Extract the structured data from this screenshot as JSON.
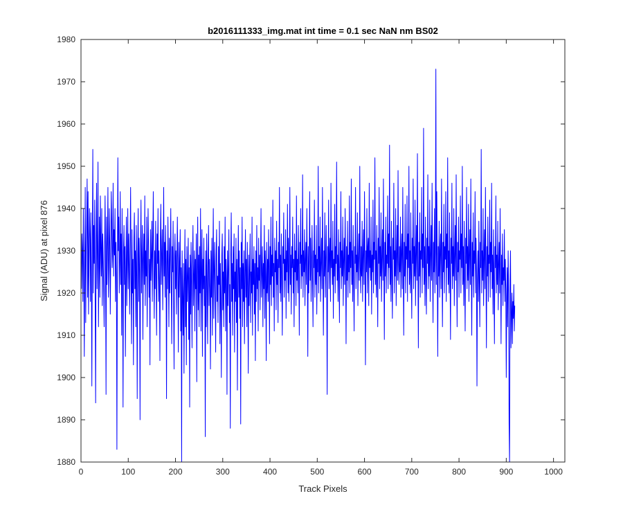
{
  "chart_data": {
    "type": "line",
    "title": "b2016111333_img.mat int time = 0.1 sec  NaN nm BS02",
    "xlabel": "Track Pixels",
    "ylabel": "Signal (ADU) at pixel 876",
    "xlim": [
      0,
      1024
    ],
    "ylim": [
      1880,
      1980
    ],
    "xticks": [
      0,
      100,
      200,
      300,
      400,
      500,
      600,
      700,
      800,
      900,
      1000
    ],
    "yticks": [
      1880,
      1890,
      1900,
      1910,
      1920,
      1930,
      1940,
      1950,
      1960,
      1970,
      1980
    ],
    "grid": false,
    "legend": "none",
    "series_color": "#0000ff",
    "series": [
      {
        "x_start": 1,
        "x_step": 1,
        "values": [
          1921,
          1934,
          1930,
          1918,
          1940,
          1925,
          1905,
          1927,
          1945,
          1913,
          1930,
          1936,
          1947,
          1919,
          1944,
          1915,
          1929,
          1940,
          1933,
          1918,
          1939,
          1924,
          1898,
          1931,
          1954,
          1920,
          1936,
          1927,
          1942,
          1918,
          1894,
          1933,
          1946,
          1921,
          1929,
          1951,
          1912,
          1925,
          1938,
          1919,
          1943,
          1930,
          1924,
          1940,
          1917,
          1934,
          1928,
          1921,
          1912,
          1930,
          1943,
          1926,
          1896,
          1938,
          1922,
          1933,
          1945,
          1919,
          1926,
          1940,
          1931,
          1915,
          1928,
          1944,
          1937,
          1926,
          1930,
          1946,
          1924,
          1935,
          1929,
          1940,
          1918,
          1932,
          1924,
          1883,
          1926,
          1952,
          1930,
          1938,
          1920,
          1927,
          1944,
          1922,
          1934,
          1910,
          1940,
          1925,
          1893,
          1930,
          1936,
          1922,
          1931,
          1905,
          1924,
          1938,
          1917,
          1929,
          1940,
          1921,
          1934,
          1926,
          1915,
          1931,
          1945,
          1923,
          1908,
          1935,
          1920,
          1928,
          1903,
          1933,
          1939,
          1921,
          1930,
          1912,
          1936,
          1924,
          1895,
          1929,
          1940,
          1918,
          1933,
          1925,
          1890,
          1931,
          1942,
          1920,
          1929,
          1936,
          1909,
          1928,
          1934,
          1922,
          1943,
          1917,
          1930,
          1924,
          1938,
          1912,
          1926,
          1940,
          1931,
          1919,
          1928,
          1903,
          1935,
          1923,
          1929,
          1937,
          1918,
          1932,
          1944,
          1926,
          1914,
          1930,
          1921,
          1937,
          1925,
          1910,
          1934,
          1927,
          1940,
          1918,
          1930,
          1923,
          1904,
          1933,
          1941,
          1922,
          1929,
          1935,
          1916,
          1928,
          1945,
          1924,
          1932,
          1919,
          1936,
          1927,
          1895,
          1930,
          1921,
          1938,
          1926,
          1912,
          1933,
          1920,
          1929,
          1940,
          1923,
          1908,
          1931,
          1925,
          1937,
          1918,
          1902,
          1929,
          1934,
          1921,
          1930,
          1915,
          1927,
          1938,
          1924,
          1906,
          1932,
          1919,
          1928,
          1935,
          1911,
          1926,
          1880,
          1930,
          1920,
          1910,
          1927,
          1901,
          1923,
          1935,
          1912,
          1928,
          1903,
          1931,
          1918,
          1924,
          1933,
          1909,
          1926,
          1893,
          1929,
          1915,
          1932,
          1922,
          1907,
          1928,
          1936,
          1917,
          1924,
          1930,
          1911,
          1928,
          1921,
          1934,
          1899,
          1925,
          1938,
          1916,
          1929,
          1912,
          1931,
          1920,
          1940,
          1911,
          1926,
          1935,
          1905,
          1928,
          1921,
          1933,
          1917,
          1924,
          1886,
          1930,
          1912,
          1934,
          1923,
          1908,
          1927,
          1936,
          1917,
          1928,
          1921,
          1902,
          1930,
          1919,
          1933,
          1910,
          1926,
          1940,
          1914,
          1925,
          1932,
          1920,
          1906,
          1929,
          1935,
          1918,
          1924,
          1913,
          1931,
          1922,
          1937,
          1908,
          1927,
          1919,
          1900,
          1929,
          1934,
          1916,
          1925,
          1912,
          1931,
          1920,
          1938,
          1911,
          1928,
          1923,
          1896,
          1930,
          1917,
          1926,
          1935,
          1913,
          1922,
          1888,
          1929,
          1939,
          1918,
          1927,
          1910,
          1931,
          1921,
          1934,
          1906,
          1925,
          1918,
          1933,
          1913,
          1928,
          1897,
          1924,
          1936,
          1919,
          1930,
          1914,
          1926,
          1889,
          1932,
          1921,
          1938,
          1912,
          1927,
          1918,
          1930,
          1908,
          1924,
          1935,
          1919,
          1928,
          1912,
          1932,
          1922,
          1901,
          1929,
          1917,
          1926,
          1934,
          1913,
          1925,
          1920,
          1938,
          1910,
          1928,
          1922,
          1931,
          1915,
          1927,
          1904,
          1930,
          1918,
          1936,
          1921,
          1926,
          1911,
          1933,
          1923,
          1929,
          1916,
          1928,
          1940,
          1919,
          1925,
          1931,
          1912,
          1927,
          1921,
          1936,
          1914,
          1930,
          1924,
          1904,
          1932,
          1920,
          1928,
          1918,
          1935,
          1926,
          1908,
          1931,
          1922,
          1938,
          1917,
          1929,
          1924,
          1942,
          1919,
          1927,
          1911,
          1933,
          1925,
          1930,
          1916,
          1937,
          1922,
          1928,
          1913,
          1932,
          1926,
          1945,
          1920,
          1929,
          1918,
          1934,
          1924,
          1910,
          1931,
          1927,
          1939,
          1919,
          1928,
          1923,
          1935,
          1914,
          1930,
          1925,
          1941,
          1920,
          1933,
          1918,
          1927,
          1945,
          1922,
          1929,
          1915,
          1931,
          1926,
          1938,
          1920,
          1928,
          1912,
          1934,
          1925,
          1930,
          1917,
          1943,
          1923,
          1928,
          1920,
          1936,
          1926,
          1910,
          1932,
          1927,
          1940,
          1921,
          1929,
          1924,
          1948,
          1919,
          1930,
          1925,
          1935,
          1917,
          1928,
          1932,
          1922,
          1940,
          1926,
          1905,
          1931,
          1920,
          1929,
          1944,
          1923,
          1933,
          1918,
          1927,
          1936,
          1924,
          1912,
          1930,
          1926,
          1942,
          1919,
          1929,
          1922,
          1936,
          1915,
          1928,
          1925,
          1950,
          1920,
          1931,
          1924,
          1938,
          1918,
          1927,
          1933,
          1921,
          1945,
          1926,
          1910,
          1930,
          1924,
          1939,
          1919,
          1928,
          1936,
          1922,
          1896,
          1931,
          1925,
          1942,
          1921,
          1929,
          1933,
          1918,
          1946,
          1926,
          1930,
          1922,
          1937,
          1914,
          1928,
          1924,
          1941,
          1920,
          1931,
          1927,
          1951,
          1923,
          1929,
          1918,
          1935,
          1925,
          1913,
          1932,
          1926,
          1944,
          1921,
          1930,
          1924,
          1938,
          1917,
          1928,
          1933,
          1922,
          1940,
          1926,
          1908,
          1931,
          1923,
          1937,
          1919,
          1929,
          1925,
          1943,
          1920,
          1932,
          1926,
          1947,
          1922,
          1930,
          1918,
          1936,
          1924,
          1911,
          1931,
          1927,
          1945,
          1921,
          1929,
          1925,
          1939,
          1917,
          1928,
          1934,
          1923,
          1950,
          1926,
          1920,
          1931,
          1924,
          1937,
          1918,
          1929,
          1935,
          1922,
          1944,
          1927,
          1903,
          1930,
          1925,
          1940,
          1920,
          1931,
          1933,
          1917,
          1946,
          1926,
          1930,
          1923,
          1938,
          1915,
          1929,
          1925,
          1942,
          1920,
          1932,
          1928,
          1952,
          1922,
          1930,
          1919,
          1936,
          1926,
          1912,
          1933,
          1927,
          1945,
          1921,
          1931,
          1924,
          1939,
          1918,
          1928,
          1935,
          1923,
          1947,
          1926,
          1909,
          1932,
          1924,
          1938,
          1920,
          1929,
          1927,
          1943,
          1921,
          1934,
          1926,
          1955,
          1922,
          1931,
          1918,
          1937,
          1925,
          1914,
          1933,
          1928,
          1946,
          1920,
          1930,
          1924,
          1940,
          1917,
          1929,
          1936,
          1923,
          1949,
          1927,
          1922,
          1931,
          1925,
          1938,
          1919,
          1930,
          1934,
          1921,
          1945,
          1926,
          1910,
          1932,
          1924,
          1941,
          1920,
          1931,
          1928,
          1943,
          1918,
          1934,
          1926,
          1950,
          1922,
          1930,
          1920,
          1939,
          1925,
          1914,
          1933,
          1927,
          1947,
          1921,
          1931,
          1924,
          1942,
          1917,
          1929,
          1936,
          1923,
          1953,
          1926,
          1907,
          1932,
          1924,
          1939,
          1919,
          1930,
          1928,
          1945,
          1920,
          1934,
          1926,
          1959,
          1922,
          1931,
          1917,
          1938,
          1925,
          1915,
          1933,
          1927,
          1948,
          1921,
          1931,
          1924,
          1942,
          1918,
          1929,
          1936,
          1923,
          1946,
          1927,
          1913,
          1932,
          1925,
          1940,
          1920,
          1930,
          1973,
          1922,
          1944,
          1926,
          1905,
          1931,
          1924,
          1937,
          1919,
          1930,
          1934,
          1921,
          1947,
          1927,
          1912,
          1932,
          1925,
          1941,
          1920,
          1931,
          1928,
          1944,
          1918,
          1934,
          1926,
          1952,
          1922,
          1930,
          1920,
          1939,
          1925,
          1909,
          1933,
          1927,
          1946,
          1921,
          1931,
          1924,
          1940,
          1917,
          1929,
          1936,
          1923,
          1948,
          1926,
          1912,
          1932,
          1925,
          1938,
          1919,
          1930,
          1928,
          1943,
          1920,
          1934,
          1926,
          1950,
          1922,
          1931,
          1917,
          1937,
          1924,
          1911,
          1933,
          1927,
          1945,
          1921,
          1931,
          1923,
          1941,
          1918,
          1929,
          1935,
          1922,
          1947,
          1926,
          1910,
          1932,
          1924,
          1939,
          1919,
          1930,
          1927,
          1944,
          1920,
          1933,
          1925,
          1898,
          1922,
          1930,
          1918,
          1937,
          1924,
          1912,
          1932,
          1926,
          1954,
          1920,
          1930,
          1923,
          1940,
          1917,
          1928,
          1935,
          1921,
          1945,
          1926,
          1907,
          1931,
          1924,
          1938,
          1918,
          1929,
          1927,
          1942,
          1919,
          1932,
          1925,
          1946,
          1921,
          1929,
          1915,
          1935,
          1923,
          1908,
          1931,
          1926,
          1943,
          1920,
          1929,
          1922,
          1937,
          1916,
          1927,
          1932,
          1920,
          1940,
          1924,
          1908,
          1929,
          1922,
          1934,
          1917,
          1926,
          1923,
          1935,
          1918,
          1928,
          1921,
          1900,
          1919,
          1926,
          1912,
          1930,
          1920,
          1889,
          1880,
          1923,
          1930,
          1907,
          1915,
          1920,
          1908,
          1918,
          1914,
          1922,
          1911,
          1917
        ]
      }
    ]
  }
}
